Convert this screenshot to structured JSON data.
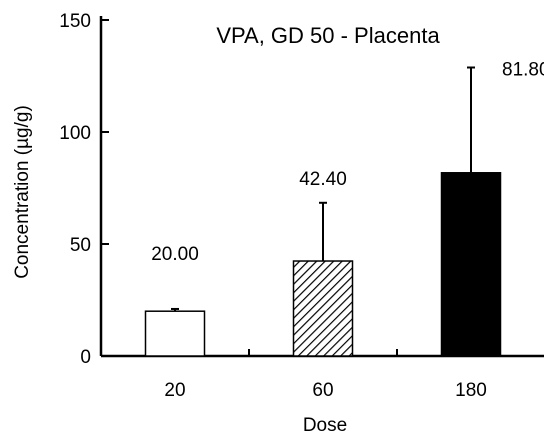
{
  "chart_data": {
    "type": "bar",
    "title": "VPA, GD 50 - Placenta",
    "xlabel": "Dose",
    "ylabel": "Concentration (µg/g)",
    "categories": [
      "20",
      "60",
      "180"
    ],
    "values": [
      20.0,
      42.4,
      81.8
    ],
    "error_upper": [
      1,
      26,
      47
    ],
    "data_labels": [
      "20.00",
      "42.40",
      "81.80"
    ],
    "bar_fills": [
      "white",
      "diagonal-hatch",
      "black"
    ],
    "ylim": [
      0,
      150
    ],
    "yticks": [
      0,
      50,
      100,
      150
    ],
    "grid": false,
    "legend": "none",
    "colors": {
      "axis": "#000000",
      "bar_outline": "#000000",
      "solid_bar": "#000000",
      "open_bar": "#ffffff"
    }
  }
}
